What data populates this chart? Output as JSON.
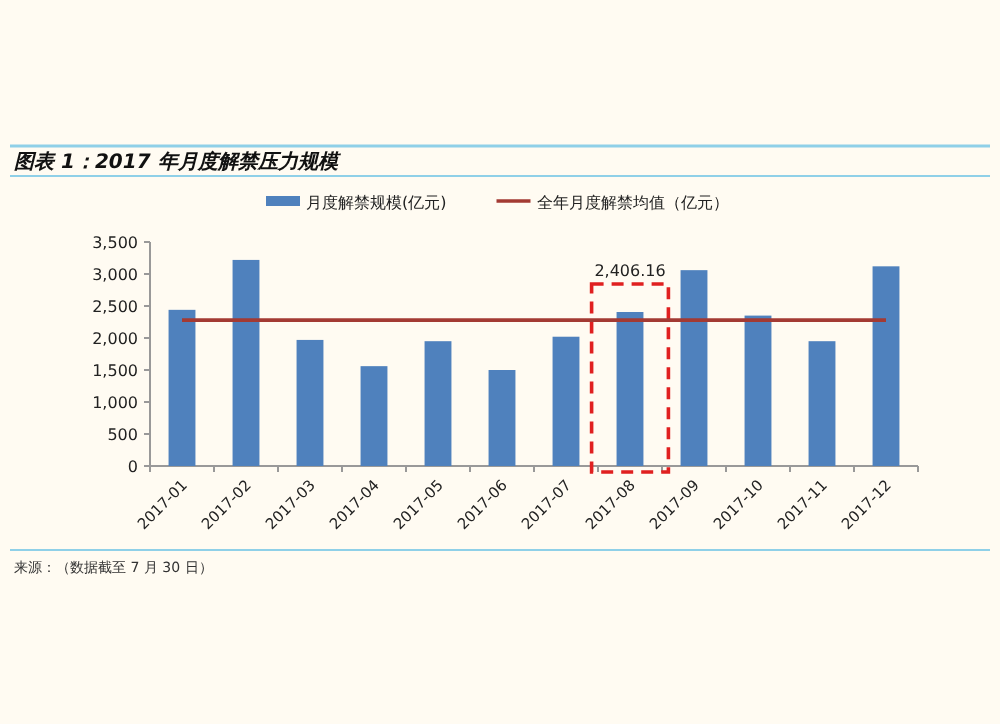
{
  "chart_data": {
    "type": "bar",
    "title": "图表 1：2017 年月度解禁压力规模",
    "categories": [
      "2017-01",
      "2017-02",
      "2017-03",
      "2017-04",
      "2017-05",
      "2017-06",
      "2017-07",
      "2017-08",
      "2017-09",
      "2017-10",
      "2017-11",
      "2017-12"
    ],
    "series": [
      {
        "name": "月度解禁规模(亿元)",
        "color": "#4f81bd",
        "values": [
          2440,
          3220,
          1970,
          1560,
          1950,
          1500,
          2020,
          2406.16,
          3060,
          2350,
          1950,
          3120
        ],
        "value_labels": [
          null,
          null,
          null,
          null,
          null,
          null,
          null,
          "2,406.16",
          null,
          null,
          null,
          null
        ]
      },
      {
        "name": "全年月度解禁均值（亿元）",
        "type": "line",
        "color": "#a33a33",
        "values": [
          2280,
          2280,
          2280,
          2280,
          2280,
          2280,
          2280,
          2280,
          2280,
          2280,
          2280,
          2280
        ]
      }
    ],
    "ylim": [
      0,
      3500
    ],
    "yticks": [
      0,
      500,
      {
        "value": 1000,
        "label": "1,000"
      },
      {
        "value": 1500,
        "label": "1,500"
      },
      {
        "value": 2000,
        "label": "2,000"
      },
      {
        "value": 2500,
        "label": "2,500"
      },
      {
        "value": 3000,
        "label": "3,000"
      },
      {
        "value": 3500,
        "label": "3,500"
      }
    ],
    "legend": "top",
    "annotations": [
      "来源：（数据截至 7 月 30 日）"
    ]
  }
}
